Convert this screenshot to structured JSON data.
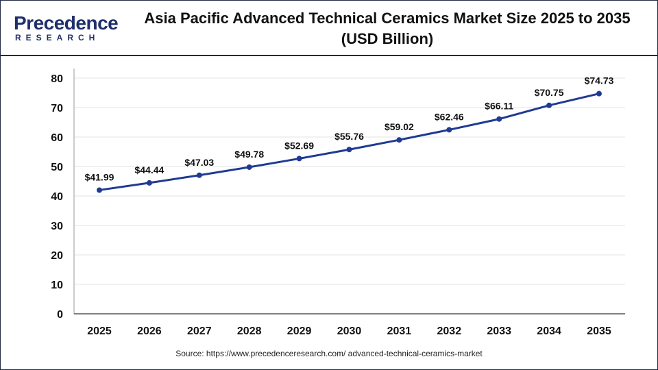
{
  "logo": {
    "main": "Precedence",
    "sub": "RESEARCH"
  },
  "header": {
    "title": "Asia Pacific Advanced Technical Ceramics Market Size 2025 to 2035 (USD Billion)"
  },
  "footer": {
    "source": "Source: https://www.precedenceresearch.com/ advanced-technical-ceramics-market"
  },
  "colors": {
    "line": "#1f3a93",
    "grid": "#e3e3e3",
    "border": "#1f2a44"
  },
  "chart_data": {
    "type": "line",
    "title": "Asia Pacific Advanced Technical Ceramics Market Size 2025 to 2035 (USD Billion)",
    "categories": [
      "2025",
      "2026",
      "2027",
      "2028",
      "2029",
      "2030",
      "2031",
      "2032",
      "2033",
      "2034",
      "2035"
    ],
    "values": [
      41.99,
      44.44,
      47.03,
      49.78,
      52.69,
      55.76,
      59.02,
      62.46,
      66.11,
      70.75,
      74.73
    ],
    "data_labels": [
      "$41.99",
      "$44.44",
      "$47.03",
      "$49.78",
      "$52.69",
      "$55.76",
      "$59.02",
      "$62.46",
      "$66.11",
      "$70.75",
      "$74.73"
    ],
    "y_ticks": [
      0,
      10,
      20,
      30,
      40,
      50,
      60,
      70,
      80
    ],
    "ylim": [
      0,
      80
    ],
    "xlabel": "",
    "ylabel": "",
    "grid": true,
    "legend": "none"
  }
}
